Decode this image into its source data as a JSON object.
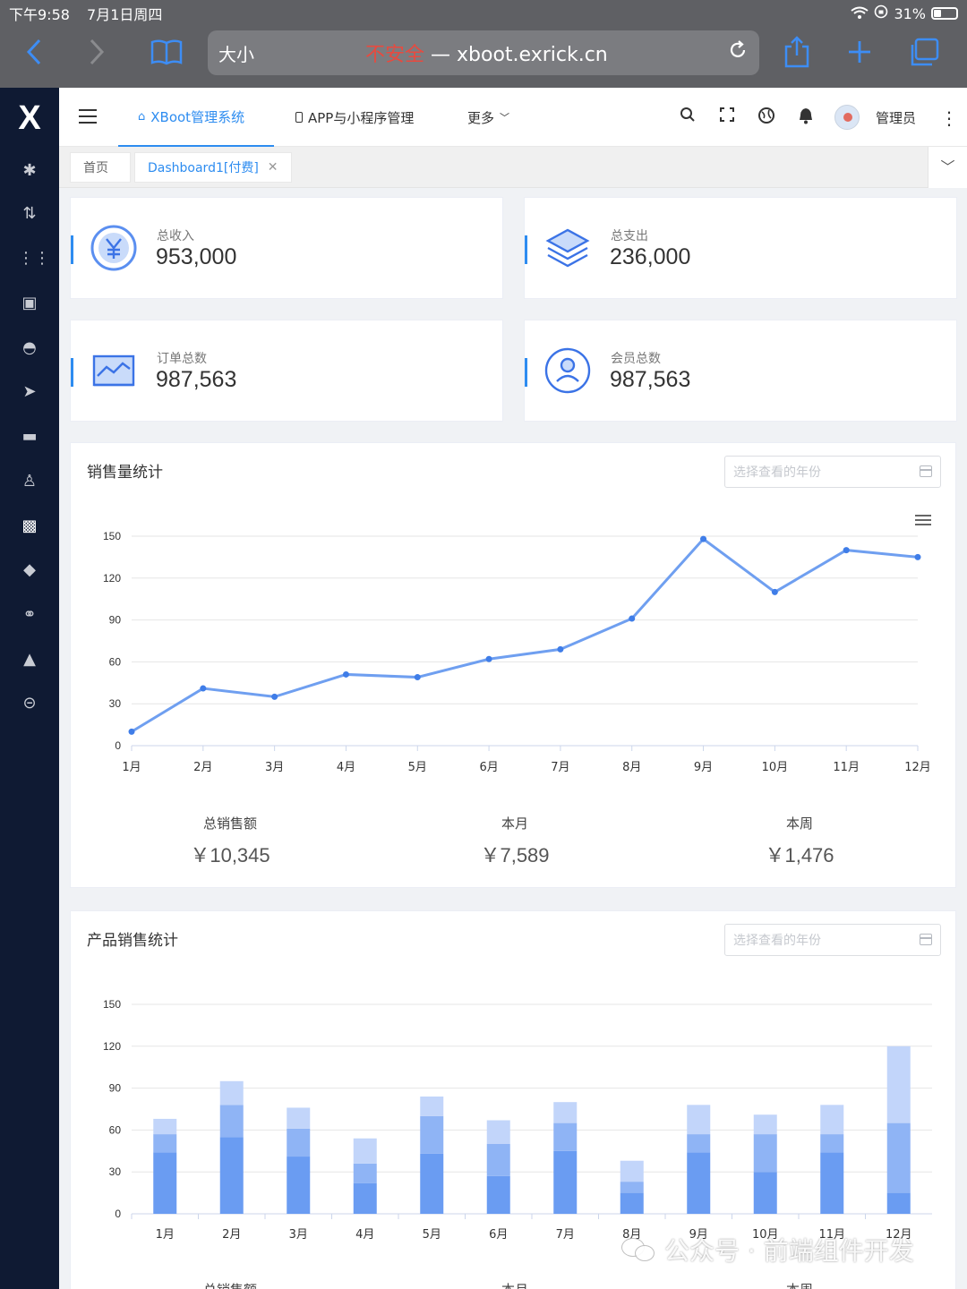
{
  "status_bar": {
    "time": "下午9:58",
    "date": "7月1日周四",
    "battery": "31%"
  },
  "browser": {
    "text_size": "大小",
    "insecure_label": "不安全",
    "separator": " — ",
    "url": "xboot.exrick.cn"
  },
  "header": {
    "tabs": [
      {
        "label": "XBoot管理系统",
        "icon": "home-icon"
      },
      {
        "label": "APP与小程序管理",
        "icon": "phone-icon"
      },
      {
        "label": "更多",
        "icon": "chevron-down-icon"
      }
    ],
    "user_name": "管理员"
  },
  "tag_bar": {
    "tags": [
      {
        "label": "首页"
      },
      {
        "label": "Dashboard1[付费]"
      }
    ]
  },
  "stats": [
    {
      "label": "总收入",
      "value": "953,000",
      "icon": "yuan-icon"
    },
    {
      "label": "总支出",
      "value": "236,000",
      "icon": "layers-icon"
    },
    {
      "label": "订单总数",
      "value": "987,563",
      "icon": "trend-chart-icon"
    },
    {
      "label": "会员总数",
      "value": "987,563",
      "icon": "user-icon"
    }
  ],
  "sales_panel": {
    "title": "销售量统计",
    "picker_placeholder": "选择查看的年份",
    "summary": [
      {
        "label": "总销售额",
        "value": "￥10,345"
      },
      {
        "label": "本月",
        "value": "￥7,589"
      },
      {
        "label": "本周",
        "value": "￥1,476"
      }
    ]
  },
  "product_panel": {
    "title": "产品销售统计",
    "picker_placeholder": "选择查看的年份",
    "summary": [
      {
        "label": "总销售额"
      },
      {
        "label": "本月"
      },
      {
        "label": "本周"
      }
    ]
  },
  "watermark": {
    "text": "公众号 · 前端组件开发"
  },
  "colors": {
    "accent": "#2d8cf0",
    "sidebar": "#0f1a33",
    "line": "#6f9ff0",
    "bar_dark": "#6a9cf2",
    "bar_mid": "#8fb4f5",
    "bar_light": "#c2d5fa"
  },
  "chart_data": [
    {
      "type": "line",
      "title": "销售量统计",
      "categories": [
        "1月",
        "2月",
        "3月",
        "4月",
        "5月",
        "6月",
        "7月",
        "8月",
        "9月",
        "10月",
        "11月",
        "12月"
      ],
      "series": [
        {
          "values": [
            10,
            41,
            35,
            51,
            49,
            62,
            69,
            91,
            148,
            110,
            140,
            135
          ]
        }
      ],
      "ylim": [
        0,
        150
      ],
      "yticks": [
        0,
        30,
        60,
        90,
        120,
        150
      ],
      "grid": true
    },
    {
      "type": "bar",
      "title": "产品销售统计",
      "stacked": true,
      "categories": [
        "1月",
        "2月",
        "3月",
        "4月",
        "5月",
        "6月",
        "7月",
        "8月",
        "9月",
        "10月",
        "11月",
        "12月"
      ],
      "series": [
        {
          "values": [
            44,
            55,
            41,
            22,
            43,
            27,
            45,
            15,
            44,
            30,
            44,
            15
          ]
        },
        {
          "values": [
            13,
            23,
            20,
            14,
            27,
            23,
            20,
            8,
            13,
            27,
            13,
            50
          ]
        },
        {
          "values": [
            11,
            17,
            15,
            18,
            14,
            17,
            15,
            15,
            21,
            14,
            21,
            55
          ]
        }
      ],
      "ylim": [
        0,
        150
      ],
      "yticks": [
        0,
        30,
        60,
        90,
        120,
        150
      ],
      "grid": true
    }
  ]
}
